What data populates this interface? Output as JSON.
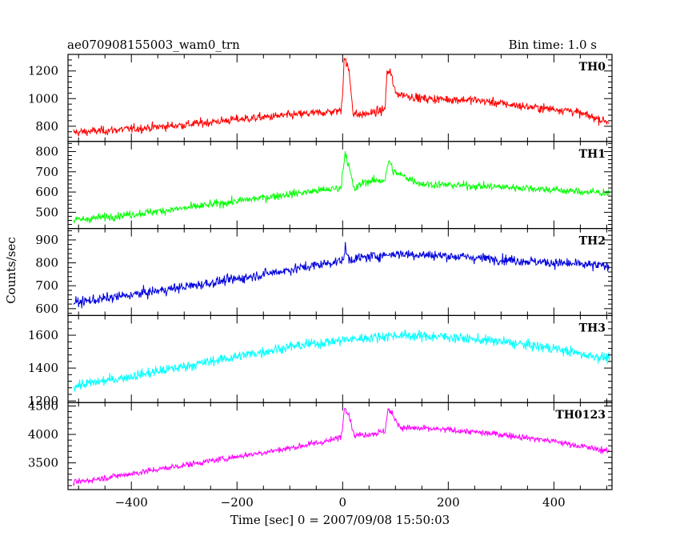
{
  "header": {
    "title": "ae070908155003_wam0_trn",
    "bin_time": "Bin time: 1.0 s"
  },
  "chart_data": {
    "type": "line",
    "xlabel": "Time [sec] 0 = 2007/09/08 15:50:03",
    "ylabel": "Counts/sec",
    "xlim": [
      -520,
      510
    ],
    "x_ticks": [
      -400,
      -200,
      0,
      200,
      400
    ],
    "x_tick_labels": [
      "−400",
      "−200",
      "0",
      "200",
      "400"
    ],
    "panels": [
      {
        "name": "TH0",
        "color": "#ff0000",
        "ylim": [
          690,
          1320
        ],
        "y_ticks": [
          800,
          1000,
          1200
        ],
        "y_tick_labels": [
          "800",
          "1000",
          "1200"
        ],
        "profile": [
          [
            -510,
            755
          ],
          [
            -400,
            780
          ],
          [
            -300,
            810
          ],
          [
            -200,
            850
          ],
          [
            -100,
            880
          ],
          [
            -20,
            905
          ],
          [
            -3,
            915
          ],
          [
            0,
            1050
          ],
          [
            3,
            1300
          ],
          [
            12,
            1200
          ],
          [
            20,
            900
          ],
          [
            30,
            880
          ],
          [
            60,
            900
          ],
          [
            80,
            920
          ],
          [
            84,
            1180
          ],
          [
            90,
            1200
          ],
          [
            100,
            1040
          ],
          [
            150,
            1000
          ],
          [
            250,
            990
          ],
          [
            350,
            940
          ],
          [
            430,
            915
          ],
          [
            505,
            830
          ]
        ],
        "noise": 40
      },
      {
        "name": "TH1",
        "color": "#00ff00",
        "ylim": [
          420,
          850
        ],
        "y_ticks": [
          500,
          600,
          700,
          800
        ],
        "y_tick_labels": [
          "500",
          "600",
          "700",
          "800"
        ],
        "profile": [
          [
            -510,
            460
          ],
          [
            -400,
            490
          ],
          [
            -300,
            520
          ],
          [
            -200,
            555
          ],
          [
            -100,
            590
          ],
          [
            -20,
            615
          ],
          [
            -3,
            620
          ],
          [
            0,
            700
          ],
          [
            5,
            800
          ],
          [
            14,
            700
          ],
          [
            22,
            610
          ],
          [
            40,
            650
          ],
          [
            80,
            660
          ],
          [
            88,
            760
          ],
          [
            96,
            700
          ],
          [
            150,
            640
          ],
          [
            250,
            630
          ],
          [
            350,
            620
          ],
          [
            430,
            605
          ],
          [
            505,
            595
          ]
        ],
        "noise": 25
      },
      {
        "name": "TH2",
        "color": "#0000dd",
        "ylim": [
          570,
          950
        ],
        "y_ticks": [
          600,
          700,
          800,
          900
        ],
        "y_tick_labels": [
          "600",
          "700",
          "800",
          "900"
        ],
        "profile": [
          [
            -510,
            625
          ],
          [
            -400,
            660
          ],
          [
            -300,
            695
          ],
          [
            -200,
            730
          ],
          [
            -100,
            770
          ],
          [
            0,
            810
          ],
          [
            5,
            860
          ],
          [
            12,
            815
          ],
          [
            100,
            840
          ],
          [
            200,
            830
          ],
          [
            300,
            815
          ],
          [
            400,
            800
          ],
          [
            505,
            785
          ]
        ],
        "noise": 28
      },
      {
        "name": "TH3",
        "color": "#00ffff",
        "ylim": [
          1190,
          1720
        ],
        "y_ticks": [
          1200,
          1400,
          1600
        ],
        "y_tick_labels": [
          "1200",
          "1400",
          "1600"
        ],
        "profile": [
          [
            -510,
            1290
          ],
          [
            -400,
            1350
          ],
          [
            -300,
            1410
          ],
          [
            -200,
            1470
          ],
          [
            -100,
            1530
          ],
          [
            0,
            1570
          ],
          [
            100,
            1600
          ],
          [
            200,
            1590
          ],
          [
            300,
            1560
          ],
          [
            400,
            1520
          ],
          [
            460,
            1480
          ],
          [
            505,
            1460
          ]
        ],
        "noise": 40
      },
      {
        "name": "TH0123",
        "color": "#ff00ff",
        "ylim": [
          3030,
          4560
        ],
        "y_ticks": [
          3500,
          4000,
          4500
        ],
        "y_tick_labels": [
          "3500",
          "4000",
          "4500"
        ],
        "profile": [
          [
            -510,
            3150
          ],
          [
            -400,
            3310
          ],
          [
            -300,
            3460
          ],
          [
            -200,
            3610
          ],
          [
            -100,
            3760
          ],
          [
            -20,
            3900
          ],
          [
            -3,
            3960
          ],
          [
            0,
            4150
          ],
          [
            4,
            4500
          ],
          [
            12,
            4350
          ],
          [
            22,
            3980
          ],
          [
            60,
            4020
          ],
          [
            80,
            4050
          ],
          [
            86,
            4450
          ],
          [
            94,
            4350
          ],
          [
            110,
            4120
          ],
          [
            200,
            4080
          ],
          [
            300,
            4000
          ],
          [
            400,
            3880
          ],
          [
            505,
            3700
          ]
        ],
        "noise": 70
      }
    ]
  }
}
